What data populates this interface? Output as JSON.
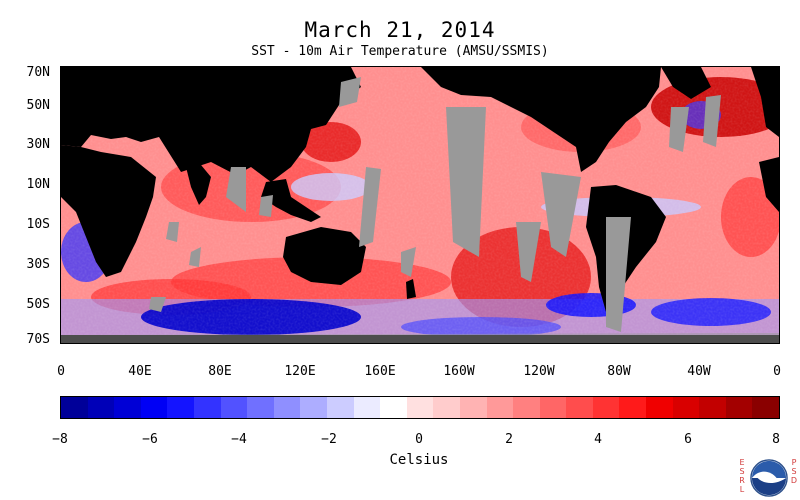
{
  "header": {
    "title": "March 21, 2014",
    "subtitle": "SST - 10m Air Temperature (AMSU/SSMIS)"
  },
  "map": {
    "lat_labels": [
      "70N",
      "50N",
      "30N",
      "10N",
      "10S",
      "30S",
      "50S",
      "70S"
    ],
    "lon_labels": [
      "0",
      "40E",
      "80E",
      "120E",
      "160E",
      "160W",
      "120W",
      "80W",
      "40W",
      "0"
    ],
    "colors": {
      "land": "#000000",
      "missing": "#999999"
    }
  },
  "colorbar": {
    "tick_labels": [
      "−8",
      "−6",
      "−4",
      "−2",
      "0",
      "2",
      "4",
      "6",
      "8"
    ],
    "unit_label": "Celsius",
    "colors": [
      "#000099",
      "#0000b8",
      "#0000d6",
      "#0000f5",
      "#1414ff",
      "#3333ff",
      "#5252ff",
      "#7070ff",
      "#8f8fff",
      "#adadff",
      "#ccccff",
      "#ebebff",
      "#ffffff",
      "#ffe0e0",
      "#ffcccc",
      "#ffb3b3",
      "#ff9999",
      "#ff8080",
      "#ff6666",
      "#ff4d4d",
      "#ff3333",
      "#ff1a1a",
      "#f00000",
      "#d90000",
      "#c20000",
      "#a30000",
      "#8a0000"
    ]
  },
  "logo": {
    "left_text": "ESRL",
    "right_text": "PSD",
    "center_text": "NOAA"
  }
}
